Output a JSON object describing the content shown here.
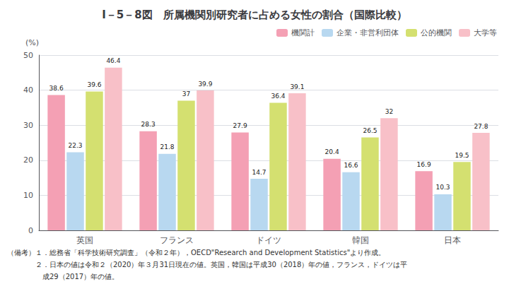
{
  "chart_data": {
    "type": "bar",
    "title": "I－5－8図　所属機関別研究者に占める女性の割合（国際比較）",
    "y_label": "(%)",
    "categories": [
      "英国",
      "フランス",
      "ドイツ",
      "韓国",
      "日本"
    ],
    "series": [
      {
        "name": "機関計",
        "color": "#f4a0b4",
        "values": [
          38.6,
          28.3,
          27.9,
          20.4,
          16.9
        ]
      },
      {
        "name": "企業・非営利団体",
        "color": "#b8d8f0",
        "values": [
          22.3,
          21.8,
          14.7,
          16.6,
          10.3
        ]
      },
      {
        "name": "公的機関",
        "color": "#d4e070",
        "values": [
          39.6,
          37.0,
          36.4,
          26.5,
          19.5
        ]
      },
      {
        "name": "大学等",
        "color": "#f8c0c8",
        "values": [
          46.4,
          39.9,
          39.1,
          32.0,
          27.8
        ]
      }
    ],
    "ylim": [
      0,
      50
    ],
    "yticks": [
      0,
      10,
      20,
      30,
      40,
      50
    ],
    "grid": true,
    "legend": "upper right",
    "data_labels": true,
    "annotations": [
      "（備考）１．総務省「科学技術研究調査」（令和２年），OECD\"Research and Development Statistics\"より作成。",
      "　　　　２．日本の値は令和２（2020）年３月31日現在の値。英国，韓国は平成30（2018）年の値，フランス，ドイツは平",
      "　　　　　成29（2017）年の値。"
    ]
  }
}
